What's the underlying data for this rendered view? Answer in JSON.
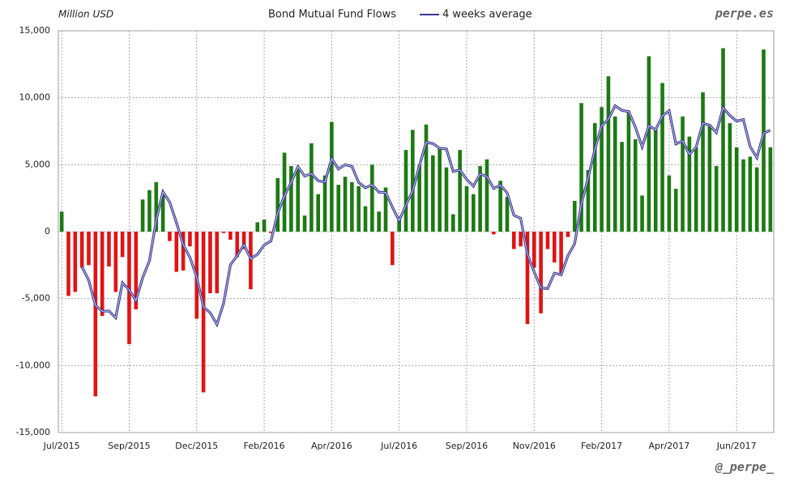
{
  "chart_data": {
    "type": "bar",
    "y_label": "Million USD",
    "annotations": [
      "perpe.es",
      "@_perpe_"
    ],
    "categories": [
      "Jul/2015",
      null,
      null,
      null,
      null,
      null,
      null,
      null,
      null,
      null,
      "Sep/2015",
      null,
      null,
      null,
      null,
      null,
      null,
      null,
      null,
      null,
      "Dec/2015",
      null,
      null,
      null,
      null,
      null,
      null,
      null,
      null,
      null,
      "Feb/2016",
      null,
      null,
      null,
      null,
      null,
      null,
      null,
      null,
      null,
      "Apr/2016",
      null,
      null,
      null,
      null,
      null,
      null,
      null,
      null,
      null,
      "Jul/2016",
      null,
      null,
      null,
      null,
      null,
      null,
      null,
      null,
      null,
      "Sep/2016",
      null,
      null,
      null,
      null,
      null,
      null,
      null,
      null,
      null,
      "Nov/2016",
      null,
      null,
      null,
      null,
      null,
      null,
      null,
      null,
      null,
      "Feb/2017",
      null,
      null,
      null,
      null,
      null,
      null,
      null,
      null,
      null,
      "Apr/2017",
      null,
      null,
      null,
      null,
      null,
      null,
      null,
      null,
      null,
      "Jun/2017",
      null,
      null,
      null,
      null,
      null
    ],
    "series": [
      {
        "name": "Bond Mutual Fund Flows",
        "type": "bar",
        "colors": {
          "positive": "#1c7a12",
          "negative": "#e01414"
        },
        "values": [
          1500,
          -4800,
          -4500,
          -2700,
          -2500,
          -12300,
          -6300,
          -2600,
          -4500,
          -1900,
          -8400,
          -5800,
          2400,
          3100,
          3700,
          2700,
          -700,
          -3000,
          -2900,
          -1100,
          -6500,
          -12000,
          -4600,
          -4600,
          -100,
          -600,
          -1900,
          -1300,
          -4300,
          700,
          900,
          -100,
          4000,
          5900,
          4900,
          4600,
          1200,
          6600,
          2800,
          4200,
          8200,
          3500,
          4100,
          3700,
          3400,
          1900,
          5000,
          1500,
          3300,
          -2500,
          1000,
          6100,
          7600,
          5000,
          8000,
          5700,
          6200,
          4800,
          1300,
          6100,
          3400,
          2800,
          4900,
          5400,
          -200,
          3800,
          2600,
          -1300,
          -1100,
          -6900,
          -2700,
          -6100,
          -1300,
          -2300,
          -3200,
          -400,
          2300,
          9600,
          4600,
          8100,
          9300,
          11600,
          8600,
          6700,
          9000,
          6900,
          2700,
          13100,
          7700,
          11100,
          4200,
          3200,
          8600,
          7100,
          6300,
          10400,
          8000,
          4900,
          13700,
          8100,
          6300,
          5400,
          5600,
          4800,
          13600,
          6300
        ]
      },
      {
        "name": "4 weeks average",
        "type": "line",
        "color": "#3a3a90",
        "values": [
          null,
          null,
          null,
          -2625,
          -3625,
          -5500,
          -5950,
          -5925,
          -6425,
          -3825,
          -4350,
          -5150,
          -3425,
          -2175,
          850,
          2975,
          2200,
          675,
          -975,
          -1925,
          -3375,
          -5625,
          -6050,
          -6925,
          -5325,
          -2475,
          -1800,
          -975,
          -2025,
          -1700,
          -1000,
          -700,
          1375,
          2675,
          3675,
          4850,
          4150,
          4325,
          3800,
          3700,
          5450,
          4675,
          5000,
          4875,
          3675,
          3275,
          3500,
          2950,
          2925,
          1825,
          825,
          1975,
          3050,
          4925,
          6675,
          6575,
          6225,
          6175,
          4500,
          4600,
          3900,
          3400,
          4300,
          4125,
          3225,
          3475,
          2900,
          1225,
          1000,
          -1675,
          -3000,
          -4200,
          -4250,
          -3100,
          -3225,
          -1800,
          -900,
          2075,
          4025,
          6150,
          7900,
          8400,
          9400,
          9050,
          8975,
          7800,
          6325,
          7925,
          7600,
          8650,
          9025,
          6550,
          6775,
          5775,
          6300,
          8100,
          7950,
          7400,
          9250,
          8675,
          8250,
          8375,
          6350,
          5525,
          7350,
          7575
        ]
      }
    ],
    "ylim": [
      -15000,
      15000
    ],
    "yticks": [
      {
        "value": -15000,
        "label": "-15,000"
      },
      {
        "value": -10000,
        "label": "-10,000"
      },
      {
        "value": -5000,
        "label": "-5,000"
      },
      0,
      {
        "value": 5000,
        "label": "5,000"
      },
      {
        "value": 10000,
        "label": "10,000"
      },
      {
        "value": 15000,
        "label": "15,000"
      }
    ],
    "grid": true
  }
}
